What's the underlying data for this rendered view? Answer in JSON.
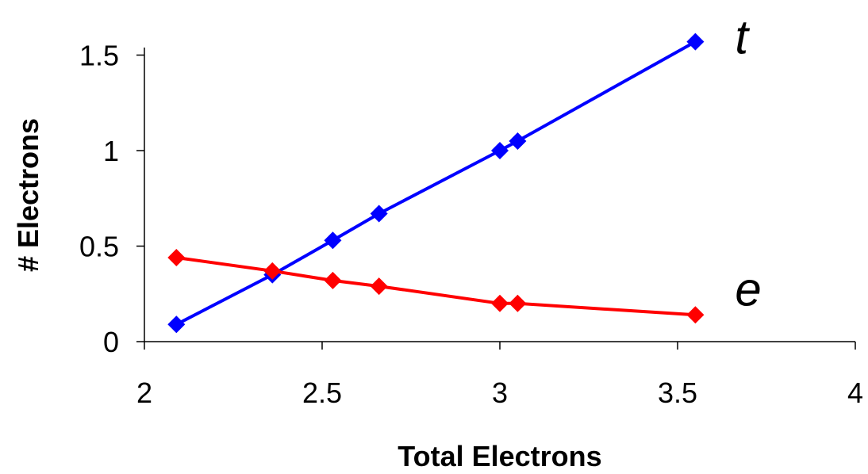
{
  "chart_data": {
    "type": "line",
    "title": "",
    "xlabel": "Total Electrons",
    "ylabel": "# Electrons",
    "xlim": [
      2,
      4
    ],
    "ylim": [
      0,
      1.6
    ],
    "xticks": [
      2,
      2.5,
      3,
      3.5,
      4
    ],
    "xtick_labels": [
      "2",
      "2.5",
      "3",
      "3.5",
      "4"
    ],
    "yticks": [
      0,
      0.5,
      1,
      1.5
    ],
    "ytick_labels": [
      "0",
      "0.5",
      "1",
      "1.5"
    ],
    "grid": false,
    "series": [
      {
        "name": "t",
        "color": "#0000ff",
        "marker": "diamond",
        "x": [
          2.09,
          2.36,
          2.53,
          2.66,
          3.0,
          3.05,
          3.55
        ],
        "y": [
          0.09,
          0.35,
          0.53,
          0.67,
          1.0,
          1.05,
          1.57
        ]
      },
      {
        "name": "e",
        "color": "#ff0000",
        "marker": "diamond",
        "x": [
          2.09,
          2.36,
          2.53,
          2.66,
          3.0,
          3.05,
          3.55
        ],
        "y": [
          0.44,
          0.37,
          0.32,
          0.29,
          0.2,
          0.2,
          0.14
        ]
      }
    ]
  }
}
